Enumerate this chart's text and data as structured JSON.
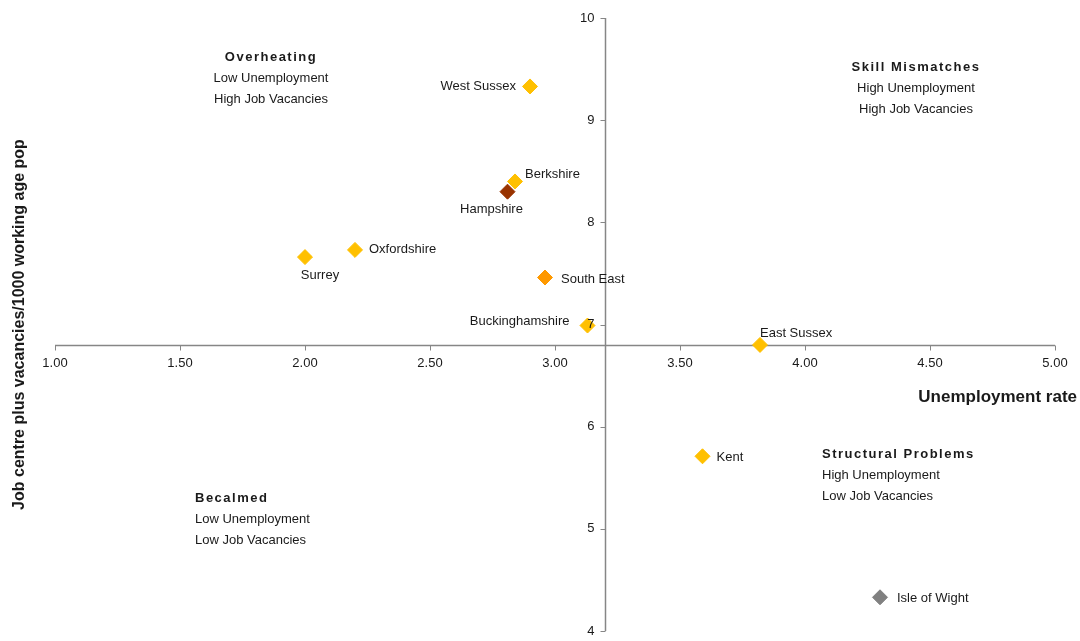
{
  "chart_data": {
    "type": "scatter",
    "xlabel": "Unemployment rate",
    "ylabel": "Job centre plus vacancies/1000 working age pop",
    "xlim": [
      1,
      5
    ],
    "xticks": [
      {
        "value": 1,
        "label": "1.00"
      },
      {
        "value": 1.5,
        "label": "1.50"
      },
      {
        "value": 2,
        "label": "2.00"
      },
      {
        "value": 2.5,
        "label": "2.50"
      },
      {
        "value": 3,
        "label": "3.00"
      },
      {
        "value": 3.5,
        "label": "3.50"
      },
      {
        "value": 4,
        "label": "4.00"
      },
      {
        "value": 4.5,
        "label": "4.50"
      },
      {
        "value": 5,
        "label": "5.00"
      }
    ],
    "ylim": [
      4,
      10
    ],
    "yticks": [
      4,
      5,
      6,
      7,
      8,
      9,
      10
    ],
    "marker": "diamond",
    "legend": false,
    "grid": false,
    "annotations": [
      "Overheating\nLow Unemployment\nHigh Job Vacancies",
      "Skill Mismatches\nHigh Unemployment\nHigh Job Vacancies",
      "Structural Problems\nHigh Unemployment\nLow Job Vacancies",
      "Becalmed\nLow Unemployment\nLow Job Vacancies"
    ],
    "series": [
      {
        "name": "West Sussex",
        "color": "#ffc000",
        "x": [
          2.9
        ],
        "values": [
          9.33
        ]
      },
      {
        "name": "Berkshire",
        "color": "#ffc000",
        "x": [
          2.84
        ],
        "values": [
          8.4
        ]
      },
      {
        "name": "Hampshire",
        "color": "#993300",
        "x": [
          2.81
        ],
        "values": [
          8.3
        ]
      },
      {
        "name": "Oxfordshire",
        "color": "#ffc000",
        "x": [
          2.2
        ],
        "values": [
          7.73
        ]
      },
      {
        "name": "Surrey",
        "color": "#ffc000",
        "x": [
          2.0
        ],
        "values": [
          7.66
        ]
      },
      {
        "name": "South East",
        "color": "#ff9900",
        "x": [
          2.96
        ],
        "values": [
          7.46
        ]
      },
      {
        "name": "Buckinghamshire",
        "color": "#ffc000",
        "x": [
          3.13
        ],
        "values": [
          6.99
        ]
      },
      {
        "name": "East Sussex",
        "color": "#ffc000",
        "x": [
          3.82
        ],
        "values": [
          6.8
        ]
      },
      {
        "name": "Kent",
        "color": "#ffc000",
        "x": [
          3.59
        ],
        "values": [
          5.71
        ]
      },
      {
        "name": "Isle of Wight",
        "color": "#808080",
        "x": [
          4.3
        ],
        "values": [
          4.33
        ]
      }
    ]
  }
}
